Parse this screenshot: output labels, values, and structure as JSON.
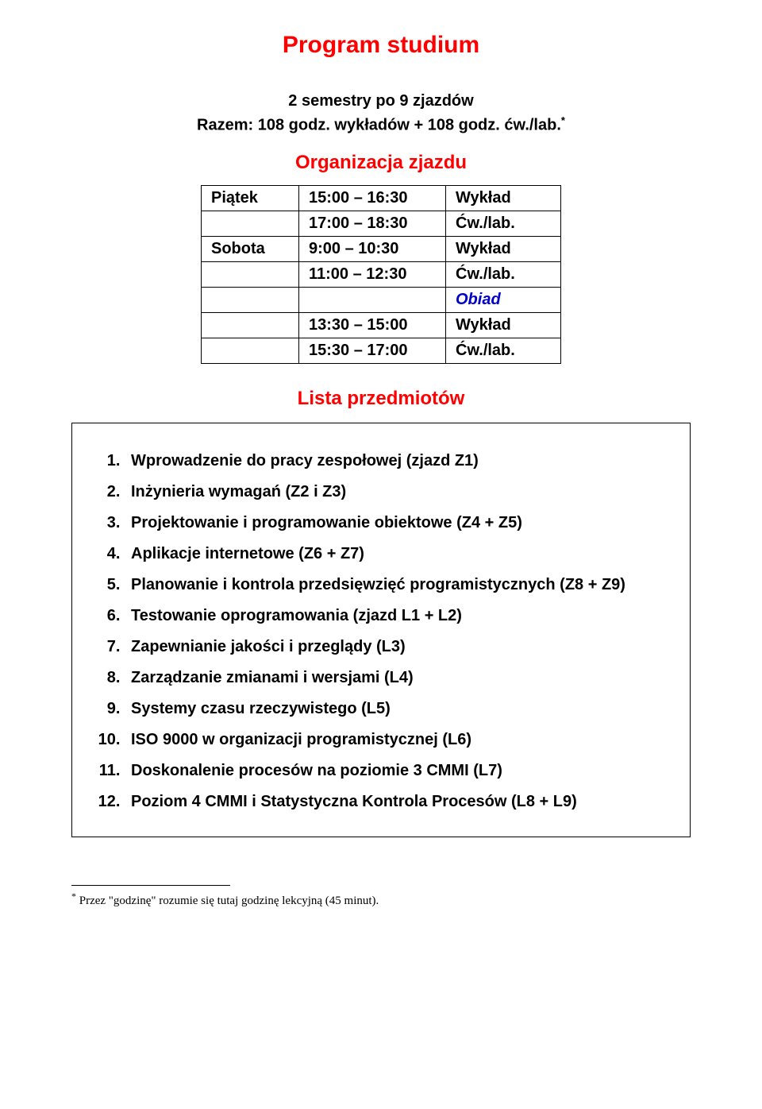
{
  "colors": {
    "heading": "#ff0000",
    "obiad": "#0000c8",
    "text": "#000000",
    "background": "#ffffff",
    "border": "#000000"
  },
  "title": "Program studium",
  "subtitle_line1": "2 semestry po 9 zjazdów",
  "subtitle_line2": "Razem: 108 godz. wykładów + 108 godz. ćw./lab.",
  "subtitle_asterisk": "*",
  "heading_schedule": "Organizacja zjazdu",
  "schedule": {
    "rows": [
      {
        "day": "Piątek",
        "time": "15:00 – 16:30",
        "activity": "Wykład",
        "activity_class": ""
      },
      {
        "day": "",
        "time": "17:00 – 18:30",
        "activity": "Ćw./lab.",
        "activity_class": ""
      },
      {
        "day": "Sobota",
        "time": "9:00 – 10:30",
        "activity": "Wykład",
        "activity_class": ""
      },
      {
        "day": "",
        "time": "11:00 – 12:30",
        "activity": "Ćw./lab.",
        "activity_class": ""
      },
      {
        "day": "",
        "time": "",
        "activity": "Obiad",
        "activity_class": "obiad"
      },
      {
        "day": "",
        "time": "13:30 – 15:00",
        "activity": "Wykład",
        "activity_class": ""
      },
      {
        "day": "",
        "time": "15:30 – 17:00",
        "activity": "Ćw./lab.",
        "activity_class": ""
      }
    ]
  },
  "heading_subjects": "Lista przedmiotów",
  "subjects": [
    "Wprowadzenie do pracy zespołowej (zjazd Z1)",
    "Inżynieria wymagań (Z2 i Z3)",
    "Projektowanie i programowanie obiektowe (Z4 + Z5)",
    "Aplikacje internetowe (Z6 + Z7)",
    "Planowanie i kontrola przedsięwzięć programistycznych (Z8 + Z9)",
    "Testowanie oprogramowania (zjazd L1 + L2)",
    "Zapewnianie jakości i przeglądy (L3)",
    "Zarządzanie zmianami i wersjami (L4)",
    "Systemy czasu rzeczywistego (L5)",
    "ISO 9000 w organizacji programistycznej (L6)",
    "Doskonalenie procesów na poziomie 3 CMMI (L7)",
    "Poziom 4 CMMI i Statystyczna Kontrola Procesów (L8 + L9)"
  ],
  "footnote_marker": "*",
  "footnote_text": " Przez \"godzinę\" rozumie się tutaj godzinę lekcyjną (45 minut)."
}
